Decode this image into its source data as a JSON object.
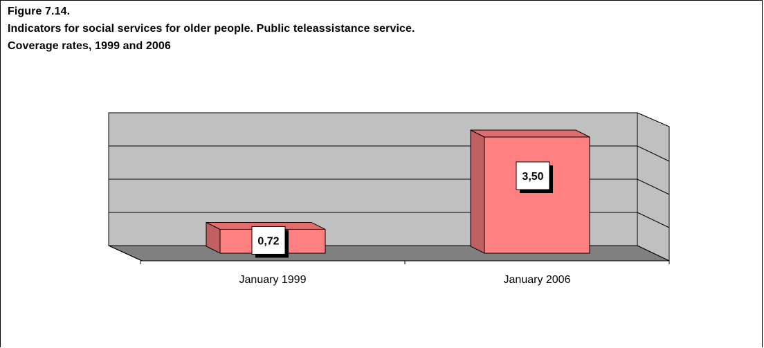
{
  "figure": {
    "title_line1": "Figure 7.14.",
    "title_line2": "Indicators for social services for older people. Public teleassistance service.",
    "title_line3": "Coverage rates, 1999 and 2006"
  },
  "chart_data": {
    "type": "bar",
    "categories": [
      "January 1999",
      "January 2006"
    ],
    "values": [
      0.72,
      3.5
    ],
    "value_labels": [
      "0,72",
      "3,50"
    ],
    "ylim": [
      0,
      4
    ],
    "gridlines": true,
    "legend": "none",
    "colors": {
      "bar_front": "#ff8080",
      "bar_side": "#c06060",
      "bar_top": "#e06e6e",
      "wall": "#c0c0c0",
      "floor": "#808080"
    }
  }
}
